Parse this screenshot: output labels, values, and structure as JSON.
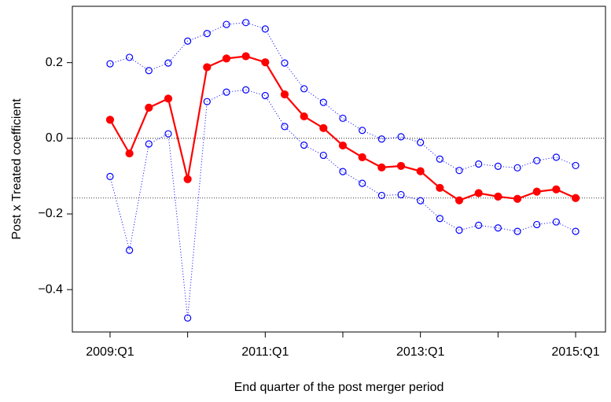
{
  "chart_data": {
    "type": "line",
    "x_label": "End quarter of the post merger period",
    "y_label": "Post x Treated coefficient",
    "x": [
      2009,
      2009.25,
      2009.5,
      2009.75,
      2010,
      2010.25,
      2010.5,
      2010.75,
      2011,
      2011.25,
      2011.5,
      2011.75,
      2012,
      2012.25,
      2012.5,
      2012.75,
      2013,
      2013.25,
      2013.5,
      2013.75,
      2014,
      2014.25,
      2014.5,
      2014.75,
      2015
    ],
    "series": [
      {
        "color": "#ff0000",
        "style": "solid",
        "marker": "filled",
        "values": [
          0.049,
          -0.04,
          0.081,
          0.105,
          -0.108,
          0.188,
          0.211,
          0.217,
          0.201,
          0.116,
          0.058,
          0.027,
          -0.019,
          -0.05,
          -0.077,
          -0.073,
          -0.087,
          -0.131,
          -0.164,
          -0.145,
          -0.154,
          -0.16,
          -0.141,
          -0.135,
          -0.158
        ]
      },
      {
        "color": "#0000ff",
        "style": "dotted",
        "marker": "open",
        "values": [
          0.197,
          0.214,
          0.179,
          0.199,
          0.257,
          0.277,
          0.301,
          0.306,
          0.289,
          0.199,
          0.131,
          0.095,
          0.053,
          0.021,
          -0.002,
          0.004,
          -0.011,
          -0.055,
          -0.085,
          -0.068,
          -0.074,
          -0.078,
          -0.059,
          -0.05,
          -0.072
        ]
      },
      {
        "color": "#0000ff",
        "style": "dotted",
        "marker": "open",
        "values": [
          -0.101,
          -0.296,
          -0.015,
          0.012,
          -0.475,
          0.097,
          0.122,
          0.128,
          0.113,
          0.031,
          -0.018,
          -0.045,
          -0.088,
          -0.119,
          -0.151,
          -0.149,
          -0.165,
          -0.212,
          -0.243,
          -0.23,
          -0.237,
          -0.246,
          -0.228,
          -0.221,
          -0.246
        ]
      }
    ],
    "hlines": [
      0,
      -0.158
    ],
    "xlim": [
      2008.514,
      2015.385
    ],
    "ylim": [
      -0.512,
      0.349
    ],
    "xticks": [
      {
        "value": 2009,
        "label": "2009:Q1"
      },
      {
        "value": 2011,
        "label": "2011:Q1"
      },
      {
        "value": 2013,
        "label": "2013:Q1"
      },
      {
        "value": 2015,
        "label": "2015:Q1"
      }
    ],
    "xminor_ticks": [
      2010,
      2012,
      2014
    ],
    "yticks": [
      {
        "value": -0.4,
        "label": "−0.4"
      },
      {
        "value": -0.2,
        "label": "−0.2"
      },
      {
        "value": 0,
        "label": "0.0"
      },
      {
        "value": 0.2,
        "label": "0.2"
      }
    ]
  }
}
